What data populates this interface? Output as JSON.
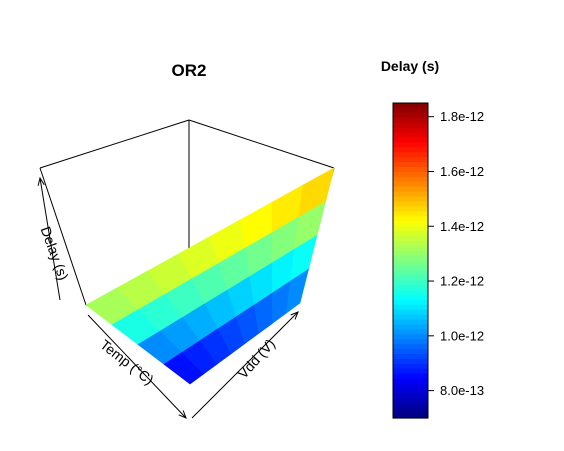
{
  "chart_data": {
    "type": "surface3d",
    "title": "OR2",
    "xlabel": "Temp (°C)",
    "ylabel": "Vdd (V)",
    "zlabel": "Delay (s)",
    "colorbar": {
      "title": "Delay (s)",
      "colormap": "jet",
      "range": [
        7e-13,
        1.85e-12
      ],
      "ticks": [
        "8.0e-13",
        "1.0e-12",
        "1.2e-12",
        "1.4e-12",
        "1.6e-12",
        "1.8e-12"
      ]
    },
    "surface": {
      "temp_levels": 8,
      "vdd_levels": 4,
      "delay_grid": [
        [
          1.32e-12,
          1.16e-12,
          1e-12,
          8.6e-13
        ],
        [
          1.34e-12,
          1.18e-12,
          1.02e-12,
          8.8e-13
        ],
        [
          1.36e-12,
          1.2e-12,
          1.04e-12,
          9e-13
        ],
        [
          1.38e-12,
          1.22e-12,
          1.06e-12,
          9.2e-13
        ],
        [
          1.4e-12,
          1.24e-12,
          1.08e-12,
          9.4e-13
        ],
        [
          1.42e-12,
          1.26e-12,
          1.1e-12,
          9.6e-13
        ],
        [
          1.44e-12,
          1.28e-12,
          1.12e-12,
          9.8e-13
        ],
        [
          1.46e-12,
          1.3e-12,
          1.14e-12,
          1e-12
        ]
      ]
    }
  }
}
